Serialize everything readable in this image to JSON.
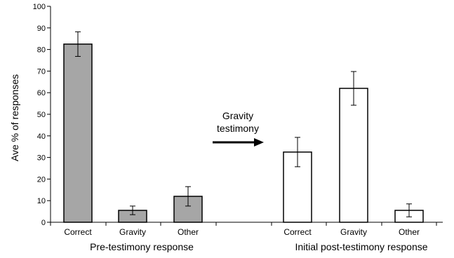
{
  "chart_data": {
    "type": "bar",
    "ylabel": "Ave % of responses",
    "ylim": [
      0,
      100
    ],
    "yticks": [
      0,
      10,
      20,
      30,
      40,
      50,
      60,
      70,
      80,
      90,
      100
    ],
    "grid": false,
    "groups": [
      {
        "name": "Pre-testimony response",
        "fill": "#a6a6a6",
        "categories": [
          "Correct",
          "Gravity",
          "Other"
        ],
        "values": [
          82.5,
          5.5,
          12
        ],
        "errors": [
          5.7,
          2,
          4.5
        ]
      },
      {
        "name": "Initial post-testimony response",
        "fill": "#ffffff",
        "categories": [
          "Correct",
          "Gravity",
          "Other"
        ],
        "values": [
          32.5,
          62,
          5.5
        ],
        "errors": [
          6.8,
          7.8,
          3
        ]
      }
    ],
    "annotation": {
      "lines": [
        "Gravity",
        "testimony"
      ],
      "arrow": "right"
    }
  }
}
